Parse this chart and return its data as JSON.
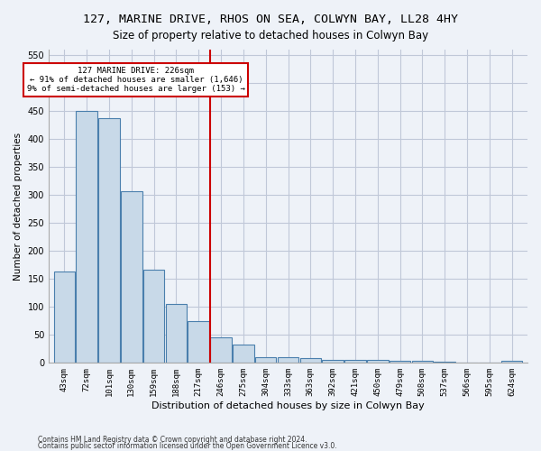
{
  "title1": "127, MARINE DRIVE, RHOS ON SEA, COLWYN BAY, LL28 4HY",
  "title2": "Size of property relative to detached houses in Colwyn Bay",
  "xlabel": "Distribution of detached houses by size in Colwyn Bay",
  "ylabel": "Number of detached properties",
  "footer1": "Contains HM Land Registry data © Crown copyright and database right 2024.",
  "footer2": "Contains public sector information licensed under the Open Government Licence v3.0.",
  "bins": [
    "43sqm",
    "72sqm",
    "101sqm",
    "130sqm",
    "159sqm",
    "188sqm",
    "217sqm",
    "246sqm",
    "275sqm",
    "304sqm",
    "333sqm",
    "363sqm",
    "392sqm",
    "421sqm",
    "450sqm",
    "479sqm",
    "508sqm",
    "537sqm",
    "566sqm",
    "595sqm",
    "624sqm"
  ],
  "bar_heights": [
    163,
    450,
    437,
    307,
    167,
    106,
    75,
    45,
    33,
    11,
    10,
    8,
    5,
    5,
    5,
    4,
    3,
    2,
    1,
    1,
    4
  ],
  "bar_color": "#c8d9e8",
  "bar_edge_color": "#4a7fad",
  "property_line_x": 6.5,
  "property_value": "226sqm",
  "property_sqm": 226,
  "annotation_text1": "127 MARINE DRIVE: 226sqm",
  "annotation_text2": "← 91% of detached houses are smaller (1,646)",
  "annotation_text3": "9% of semi-detached houses are larger (153) →",
  "red_line_color": "#cc0000",
  "annotation_box_color": "#ffffff",
  "annotation_box_edge": "#cc0000",
  "ylim": [
    0,
    560
  ],
  "yticks": [
    0,
    50,
    100,
    150,
    200,
    250,
    300,
    350,
    400,
    450,
    500,
    550
  ],
  "grid_color": "#c0c8d8",
  "background_color": "#eef2f8",
  "title_fontsize": 10,
  "subtitle_fontsize": 9
}
